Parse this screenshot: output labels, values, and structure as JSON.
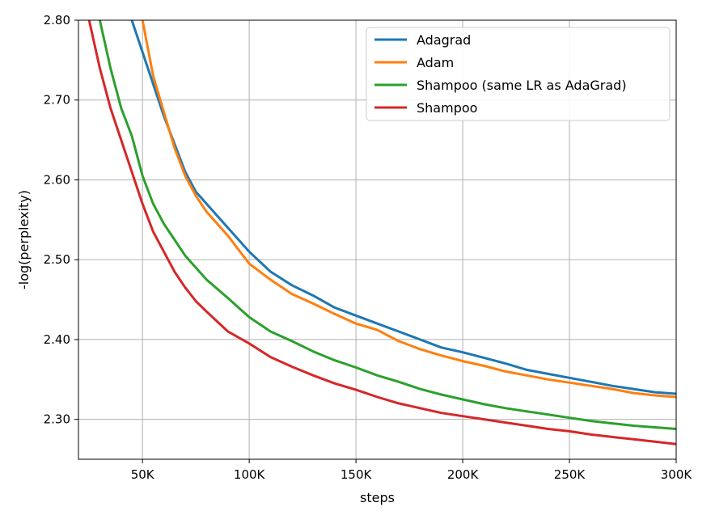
{
  "chart_data": {
    "type": "line",
    "xlabel": "steps",
    "ylabel": "-log(perplexity)",
    "xlim": [
      20000,
      300000
    ],
    "ylim": [
      2.25,
      2.8
    ],
    "grid": true,
    "legend_position": "top-right",
    "x_ticks": [
      50000,
      100000,
      150000,
      200000,
      250000,
      300000
    ],
    "x_tick_labels": [
      "50K",
      "100K",
      "150K",
      "200K",
      "250K",
      "300K"
    ],
    "y_ticks": [
      2.3,
      2.4,
      2.5,
      2.6,
      2.7,
      2.8
    ],
    "y_tick_labels": [
      "2.30",
      "2.40",
      "2.50",
      "2.60",
      "2.70",
      "2.80"
    ],
    "x": [
      25000,
      30000,
      35000,
      40000,
      45000,
      50000,
      55000,
      60000,
      65000,
      70000,
      75000,
      80000,
      90000,
      100000,
      110000,
      120000,
      130000,
      140000,
      150000,
      160000,
      170000,
      180000,
      190000,
      200000,
      210000,
      220000,
      230000,
      240000,
      250000,
      260000,
      270000,
      280000,
      290000,
      300000
    ],
    "series": [
      {
        "name": "Adagrad",
        "color": "#1f77b4",
        "values": [
          null,
          null,
          null,
          null,
          2.8,
          2.76,
          2.72,
          2.68,
          2.645,
          2.61,
          2.585,
          2.57,
          2.54,
          2.51,
          2.485,
          2.468,
          2.455,
          2.44,
          2.43,
          2.42,
          2.41,
          2.4,
          2.39,
          2.384,
          2.377,
          2.37,
          2.362,
          2.357,
          2.352,
          2.347,
          2.342,
          2.338,
          2.334,
          2.332
        ]
      },
      {
        "name": "Adam",
        "color": "#ff7f0e",
        "values": [
          null,
          null,
          null,
          null,
          null,
          2.8,
          2.73,
          2.685,
          2.64,
          2.605,
          2.58,
          2.56,
          2.53,
          2.495,
          2.475,
          2.457,
          2.445,
          2.432,
          2.42,
          2.412,
          2.398,
          2.388,
          2.38,
          2.373,
          2.367,
          2.36,
          2.355,
          2.35,
          2.346,
          2.342,
          2.338,
          2.333,
          2.33,
          2.328
        ]
      },
      {
        "name": "Shampoo (same LR as AdaGrad)",
        "color": "#2ca02c",
        "values": [
          null,
          2.8,
          2.74,
          2.69,
          2.655,
          2.605,
          2.57,
          2.545,
          2.525,
          2.505,
          2.49,
          2.475,
          2.452,
          2.428,
          2.41,
          2.398,
          2.385,
          2.374,
          2.365,
          2.355,
          2.347,
          2.338,
          2.331,
          2.325,
          2.319,
          2.314,
          2.31,
          2.306,
          2.302,
          2.298,
          2.295,
          2.292,
          2.29,
          2.288
        ]
      },
      {
        "name": "Shampoo",
        "color": "#d62728",
        "values": [
          2.8,
          2.74,
          2.69,
          2.65,
          2.61,
          2.57,
          2.535,
          2.51,
          2.485,
          2.465,
          2.448,
          2.435,
          2.41,
          2.395,
          2.378,
          2.366,
          2.355,
          2.345,
          2.337,
          2.328,
          2.32,
          2.314,
          2.308,
          2.304,
          2.3,
          2.296,
          2.292,
          2.288,
          2.285,
          2.281,
          2.278,
          2.275,
          2.272,
          2.269
        ]
      }
    ]
  }
}
